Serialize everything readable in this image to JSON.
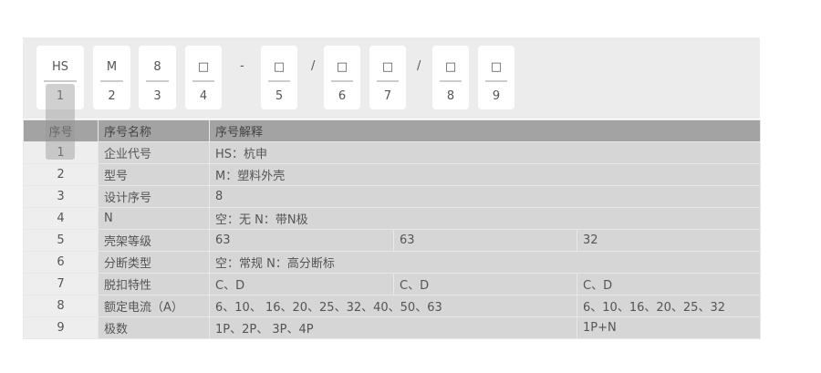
{
  "code": [
    {
      "top": "HS",
      "bottom": "1"
    },
    {
      "top": "M",
      "bottom": "2"
    },
    {
      "top": "8",
      "bottom": "3"
    },
    {
      "top": "□",
      "bottom": "4"
    },
    {
      "top": "□",
      "bottom": "5"
    },
    {
      "top": "□",
      "bottom": "6"
    },
    {
      "top": "□",
      "bottom": "7"
    },
    {
      "top": "□",
      "bottom": "8"
    },
    {
      "top": "□",
      "bottom": "9"
    }
  ],
  "separators": [
    "-",
    "/",
    "/"
  ],
  "table": {
    "headers": [
      "序号",
      "序号名称",
      "序号解释"
    ],
    "rows": [
      {
        "no": "1",
        "name": "企业代号",
        "values": [
          "HS：杭申"
        ]
      },
      {
        "no": "2",
        "name": "型号",
        "values": [
          "M：塑料外壳"
        ]
      },
      {
        "no": "3",
        "name": "设计序号",
        "values": [
          "8"
        ]
      },
      {
        "no": "4",
        "name": "N",
        "values": [
          "空：无 N：带N极"
        ]
      },
      {
        "no": "5",
        "name": "壳架等级",
        "values": [
          "63",
          "63",
          "32"
        ]
      },
      {
        "no": "6",
        "name": "分断类型",
        "values": [
          "空：常规 N：高分断标"
        ]
      },
      {
        "no": "7",
        "name": "脱扣特性",
        "values": [
          "C、D",
          "C、D",
          "C、D"
        ]
      },
      {
        "no": "8",
        "name": "额定电流（A）",
        "values": [
          "6、10、 16、20、25、32、40、50、63",
          "6、10、16、20、25、32"
        ]
      },
      {
        "no": "9",
        "name": "极数",
        "values": [
          "1P、2P、 3P、4P",
          "1P+N"
        ]
      }
    ]
  }
}
